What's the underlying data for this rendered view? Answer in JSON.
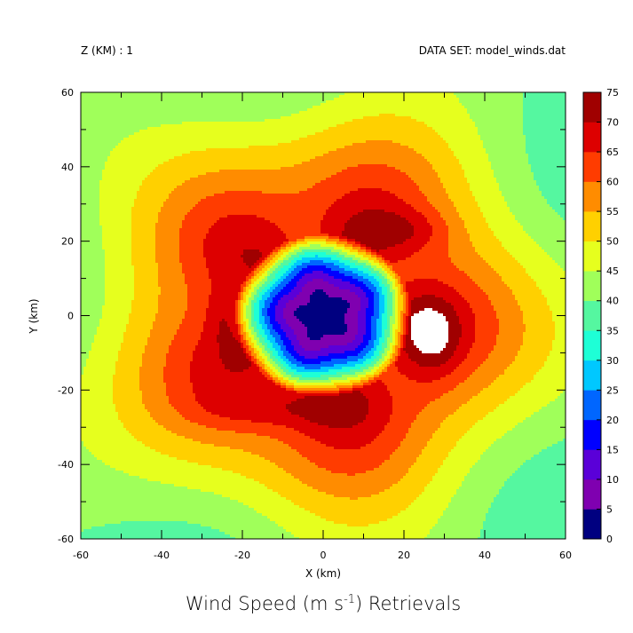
{
  "chart_data": {
    "type": "heatmap",
    "subtype": "filled-contour",
    "title_main": "Wind Speed (m s",
    "title_sup": "-1",
    "title_end": ") Retrievals",
    "header_left": "Z (KM) : 1",
    "header_right": "DATA SET: model_winds.dat",
    "xlabel": "X (km)",
    "ylabel": "Y (km)",
    "xlim": [
      -60,
      60
    ],
    "ylim": [
      -60,
      60
    ],
    "x_ticks": [
      -60,
      -40,
      -20,
      0,
      20,
      40,
      60
    ],
    "y_ticks": [
      -60,
      -40,
      -20,
      0,
      20,
      40,
      60
    ],
    "levels": [
      0,
      5,
      10,
      15,
      20,
      25,
      30,
      35,
      40,
      45,
      50,
      55,
      60,
      65,
      70,
      75
    ],
    "colors": [
      "#000080",
      "#7f00b0",
      "#5a00d8",
      "#0000ff",
      "#0066ff",
      "#00c8ff",
      "#1effd6",
      "#55f7a0",
      "#a0ff5a",
      "#e6ff1e",
      "#ffd000",
      "#ff8c00",
      "#ff3c00",
      "#dd0000",
      "#a00000"
    ],
    "colorbar_ticks": [
      0,
      5,
      10,
      15,
      20,
      25,
      30,
      35,
      40,
      45,
      50,
      55,
      60,
      65,
      70,
      75
    ],
    "field": {
      "vortex_center": [
        0,
        0
      ],
      "radius_of_max_wind_km": 22,
      "max_wind": 73,
      "center_wind": 2,
      "outer_wind": 38
    }
  }
}
